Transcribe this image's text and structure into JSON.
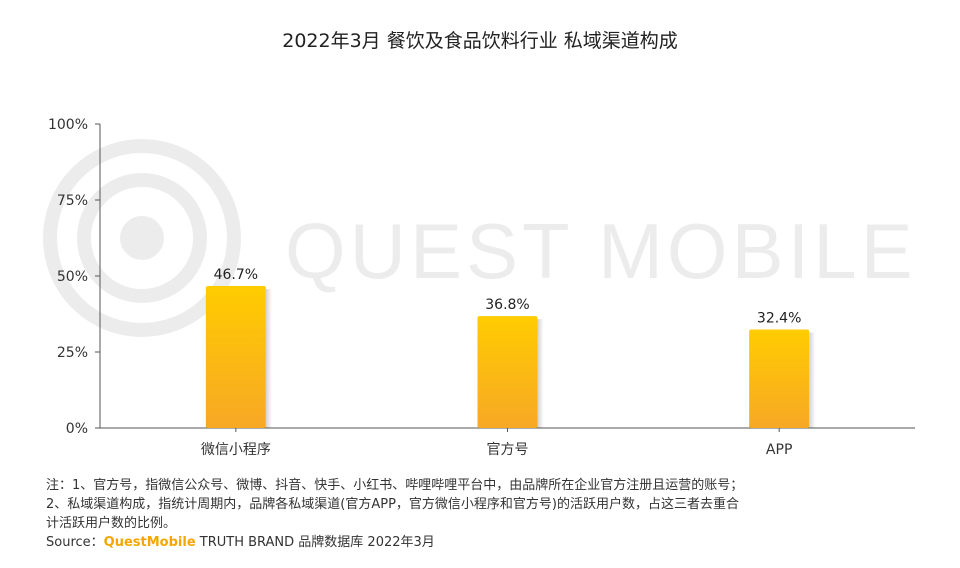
{
  "chart_data": {
    "type": "bar",
    "title": "2022年3月 餐饮及食品饮料行业 私域渠道构成",
    "categories": [
      "微信小程序",
      "官方号",
      "APP"
    ],
    "values": [
      46.7,
      36.8,
      32.4
    ],
    "value_labels": [
      "46.7%",
      "36.8%",
      "32.4%"
    ],
    "ylim": [
      0,
      100
    ],
    "yticks": [
      0,
      25,
      50,
      75,
      100
    ],
    "ytick_labels": [
      "0%",
      "25%",
      "50%",
      "75%",
      "100%"
    ],
    "grid": false,
    "legend": "none",
    "colors": {
      "bar_top": "#ffcc00",
      "bar_bottom": "#f7a825",
      "axis": "#555555"
    }
  },
  "watermark": "QUEST MOBILE",
  "notes": {
    "line1": "注：1、官方号，指微信公众号、微博、抖音、快手、小红书、哔哩哔哩平台中，由品牌所在企业官方注册且运营的账号；",
    "line2": "2、私域渠道构成，指统计周期内，品牌各私域渠道(官方APP，官方微信小程序和官方号)的活跃用户数，占这三者去重合",
    "line3": "计活跃用户数的比例。"
  },
  "source": {
    "prefix": "Source：",
    "brand": "QuestMobile",
    "suffix": " TRUTH BRAND 品牌数据库 2022年3月"
  }
}
